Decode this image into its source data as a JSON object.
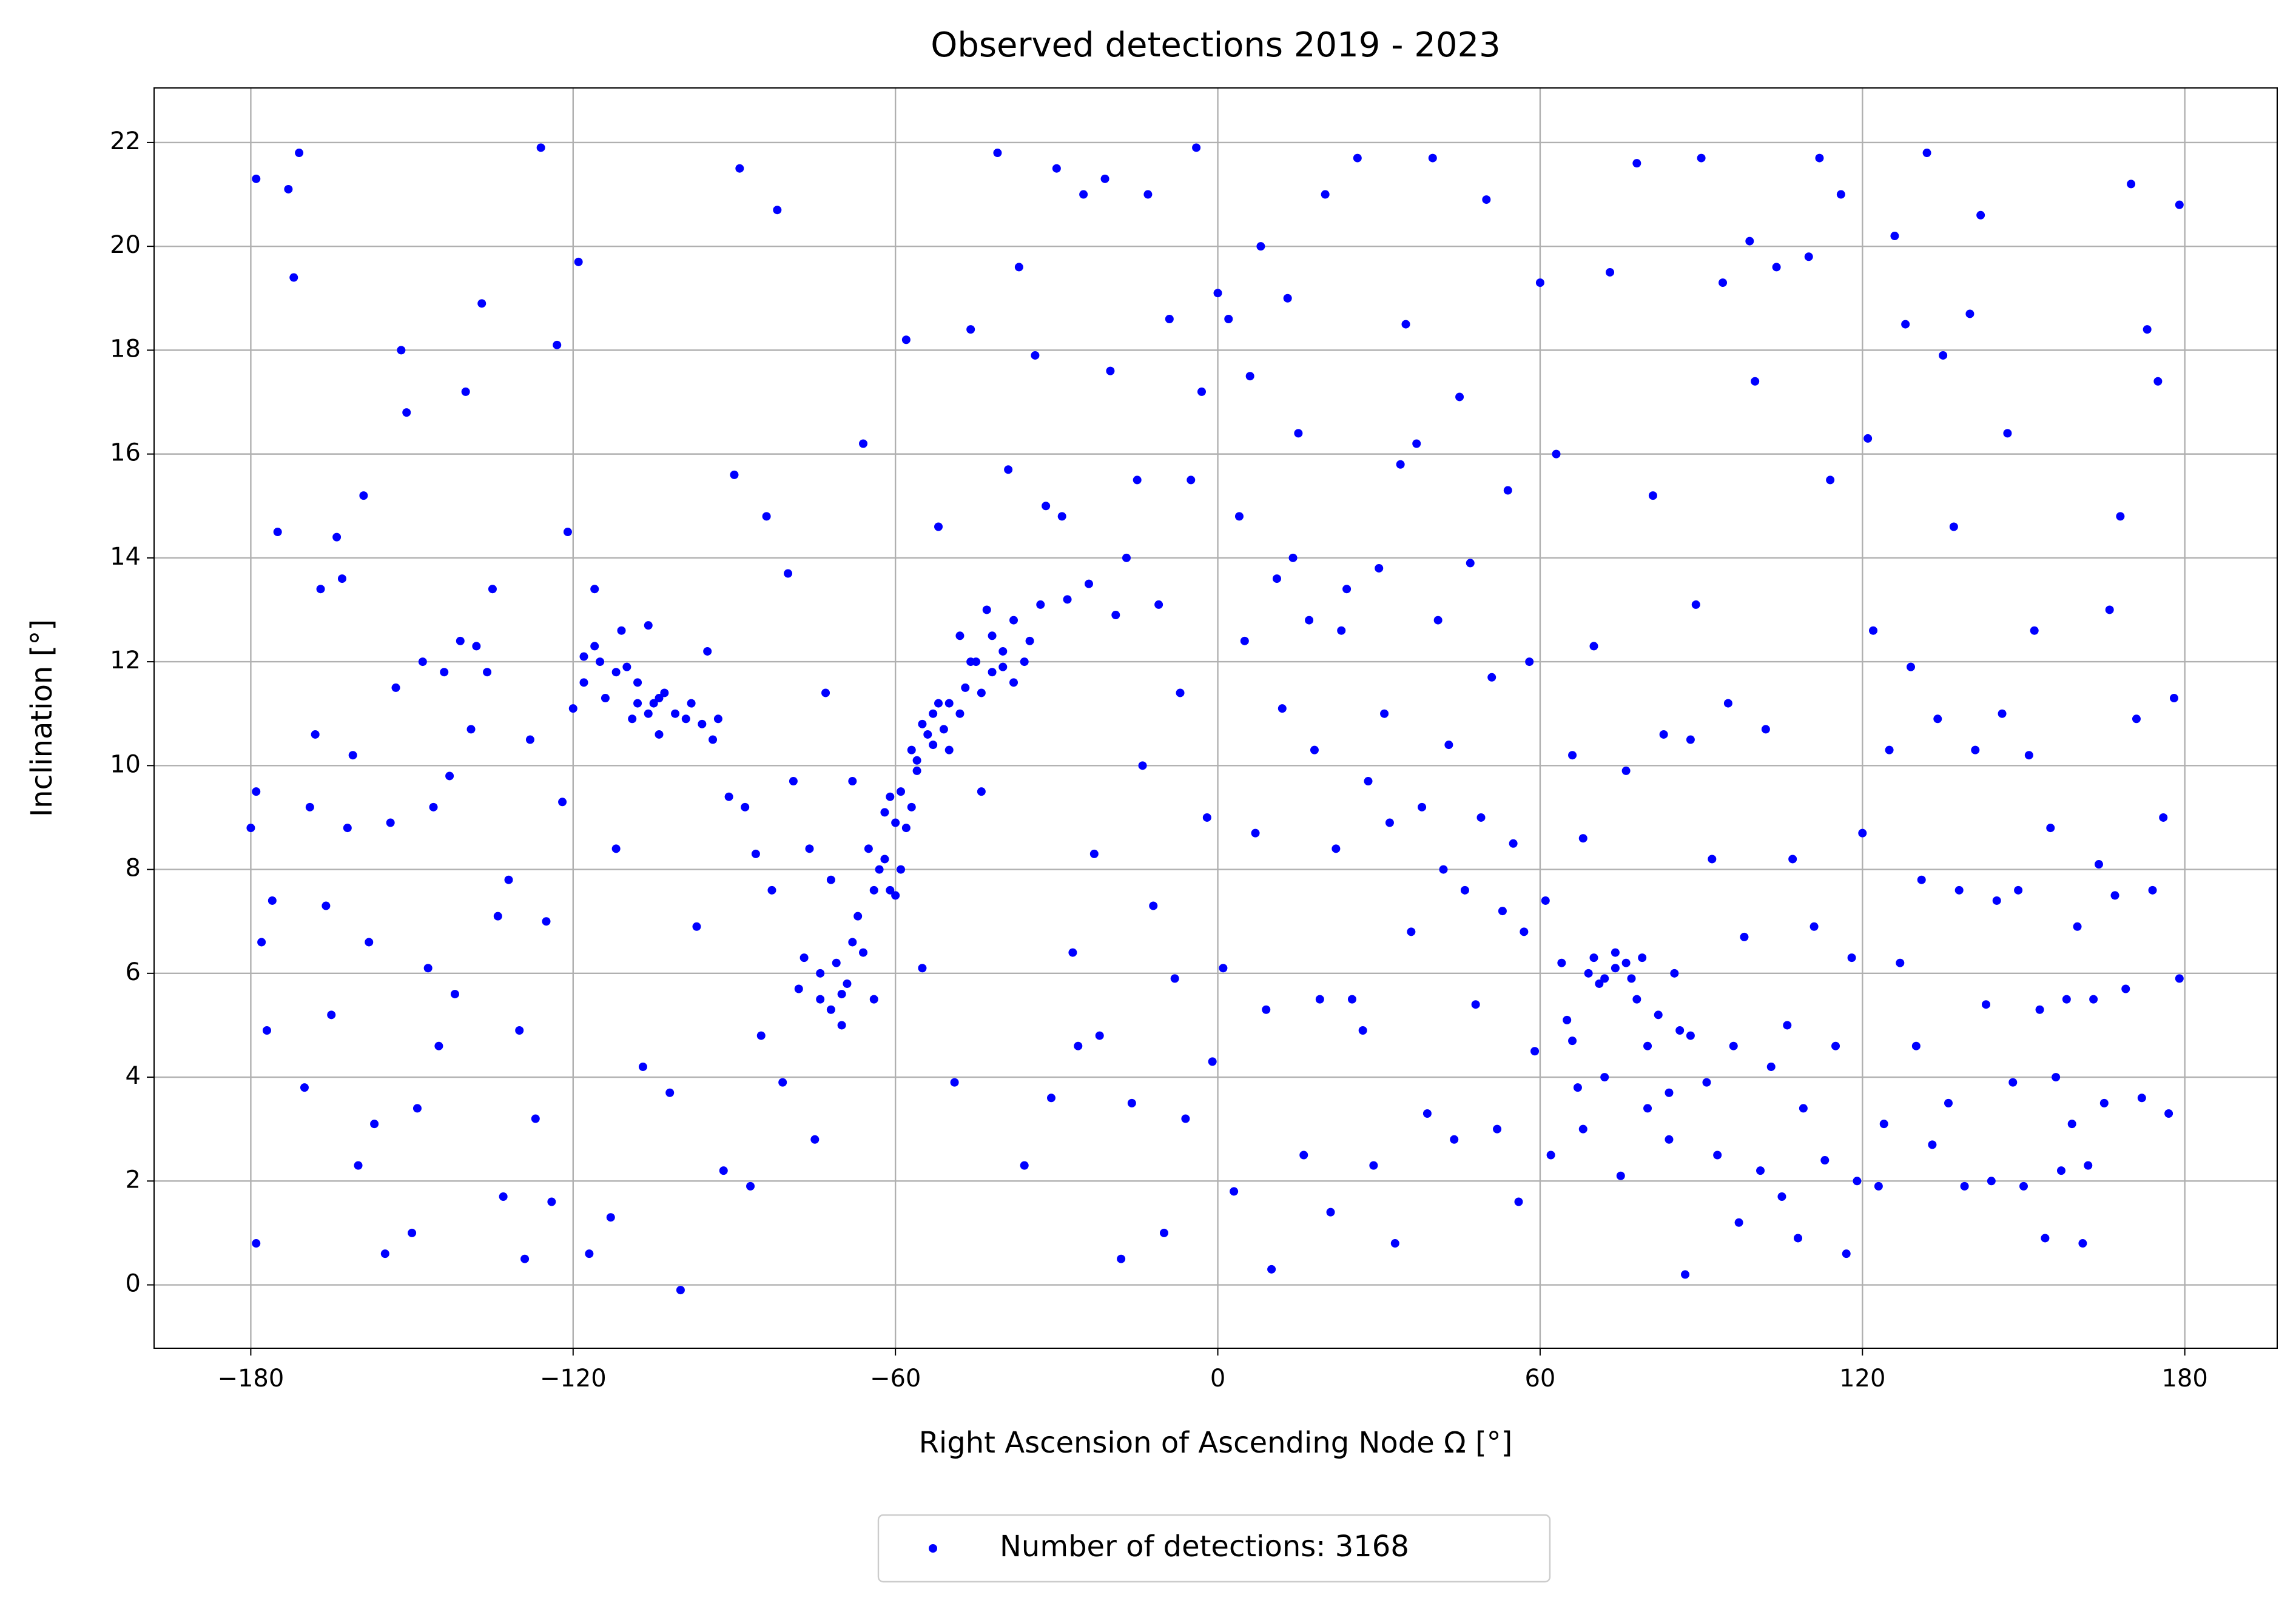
{
  "chart_data": {
    "type": "scatter",
    "title": "Observed detections 2019 - 2023",
    "x_label": "Right Ascension of Ascending Node Ω [°]",
    "y_label": "Inclination [°]",
    "xlim": [
      -198,
      197.2
    ],
    "ylim": [
      -1.22,
      23.05
    ],
    "xticks": [
      {
        "value": -180,
        "label": "−180"
      },
      {
        "value": -120,
        "label": "−120"
      },
      {
        "value": -60,
        "label": "−60"
      },
      0,
      60,
      120,
      180
    ],
    "yticks": [
      0,
      2,
      4,
      6,
      8,
      10,
      12,
      14,
      16,
      18,
      20,
      22
    ],
    "grid": true,
    "legend": "lower center",
    "series": [
      {
        "name": "Number of detections: 3168",
        "color": "#0000ff",
        "x": [
          -180,
          -179,
          -179,
          -179,
          -178,
          -177,
          -176,
          -175,
          -173,
          -172,
          -171,
          -170,
          -169,
          -168,
          -167,
          -166,
          -165,
          -164,
          -163,
          -162,
          -161,
          -160,
          -159,
          -158,
          -157,
          -155,
          -154,
          -153,
          -152,
          -151,
          -150,
          -149,
          -148,
          -147,
          -146,
          -145,
          -144,
          -143,
          -142,
          -141,
          -140,
          -139,
          -138,
          -137,
          -136,
          -135,
          -134,
          -133,
          -132,
          -130,
          -129,
          -128,
          -127,
          -126,
          -125,
          -124,
          -123,
          -122,
          -121,
          -120,
          -119,
          -118,
          -117,
          -116,
          -115,
          -114,
          -113,
          -112,
          -111,
          -110,
          -109,
          -108,
          -107,
          -106,
          -105,
          -104,
          -103,
          -102,
          -101,
          -100,
          -99,
          -98,
          -97,
          -96,
          -95,
          -94,
          -93,
          -92,
          -91,
          -90,
          -89,
          -88,
          -87,
          -86,
          -85,
          -84,
          -83,
          -82,
          -81,
          -80,
          -79,
          -78,
          -77,
          -76,
          -75,
          -74,
          -73,
          -72,
          -71,
          -70,
          -69,
          -68,
          -67,
          -66,
          -65,
          -64,
          -63,
          -62,
          -61,
          -60,
          -59,
          -58,
          -57,
          -56,
          -55,
          -54,
          -53,
          -52,
          -51,
          -50,
          -49,
          -48,
          -47,
          -46,
          -45,
          -44,
          -43,
          -42,
          -41,
          -40,
          -39,
          -38,
          -37,
          -36,
          -35,
          -34,
          -33,
          -32,
          -31,
          -30,
          -29,
          -28,
          -27,
          -26,
          -25,
          -24,
          -23,
          -22,
          -21,
          -20,
          -19,
          -18,
          -17,
          -16,
          -15,
          -14,
          -13,
          -12,
          -11,
          -10,
          -9,
          -8,
          -7,
          -6,
          -5,
          -4,
          -3,
          -2,
          -1,
          0,
          1,
          2,
          3,
          4,
          5,
          6,
          7,
          8,
          9,
          10,
          11,
          12,
          13,
          14,
          15,
          16,
          17,
          18,
          19,
          20,
          21,
          22,
          23,
          24,
          25,
          26,
          27,
          28,
          29,
          30,
          31,
          32,
          33,
          34,
          35,
          36,
          37,
          38,
          39,
          40,
          41,
          42,
          43,
          44,
          45,
          46,
          47,
          48,
          49,
          50,
          51,
          52,
          53,
          54,
          55,
          56,
          57,
          58,
          59,
          60,
          61,
          62,
          63,
          64,
          65,
          66,
          67,
          68,
          69,
          70,
          71,
          72,
          73,
          74,
          75,
          76,
          77,
          78,
          79,
          80,
          81,
          82,
          83,
          84,
          85,
          86,
          87,
          88,
          89,
          90,
          91,
          92,
          93,
          94,
          95,
          96,
          97,
          98,
          99,
          100,
          101,
          102,
          103,
          104,
          105,
          106,
          107,
          108,
          109,
          110,
          111,
          112,
          113,
          114,
          115,
          116,
          117,
          118,
          119,
          120,
          121,
          122,
          123,
          124,
          125,
          126,
          127,
          128,
          129,
          130,
          131,
          132,
          133,
          134,
          135,
          136,
          137,
          138,
          139,
          140,
          141,
          142,
          143,
          144,
          145,
          146,
          147,
          148,
          149,
          150,
          151,
          152,
          153,
          154,
          155,
          156,
          157,
          158,
          159,
          160,
          161,
          162,
          163,
          164,
          165,
          166,
          167,
          168,
          169,
          170,
          171,
          172,
          173,
          174,
          175,
          176,
          177,
          178,
          179,
          179,
          -62,
          -60,
          -58,
          -57,
          -59,
          -61,
          -56,
          -55,
          -53,
          -52,
          -50,
          -48,
          -46,
          -44,
          -42,
          -40,
          -38,
          -36,
          -64,
          -66,
          -70,
          -72,
          -74,
          -68,
          -112,
          -108,
          -106,
          -104,
          -116,
          -118,
          70,
          72,
          74,
          76,
          78,
          66,
          68,
          80,
          84,
          88
        ],
        "y": [
          8.8,
          9.5,
          21.3,
          0.8,
          6.6,
          4.9,
          7.4,
          14.5,
          21.1,
          19.4,
          21.8,
          3.8,
          9.2,
          10.6,
          13.4,
          7.3,
          5.2,
          14.4,
          13.6,
          8.8,
          10.2,
          2.3,
          15.2,
          6.6,
          3.1,
          0.6,
          8.9,
          11.5,
          18.0,
          16.8,
          1.0,
          3.4,
          12.0,
          6.1,
          9.2,
          4.6,
          11.8,
          9.8,
          5.6,
          12.4,
          17.2,
          10.7,
          12.3,
          18.9,
          11.8,
          13.4,
          7.1,
          1.7,
          7.8,
          4.9,
          0.5,
          10.5,
          3.2,
          21.9,
          7.0,
          1.6,
          18.1,
          9.3,
          14.5,
          11.1,
          19.7,
          12.1,
          0.6,
          13.4,
          12.0,
          11.3,
          1.3,
          8.4,
          12.6,
          11.9,
          10.9,
          11.6,
          4.2,
          12.7,
          11.2,
          10.6,
          11.4,
          3.7,
          11.0,
          -0.1,
          10.9,
          11.2,
          6.9,
          10.8,
          12.2,
          10.5,
          10.9,
          2.2,
          9.4,
          15.6,
          21.5,
          9.2,
          1.9,
          8.3,
          4.8,
          14.8,
          7.6,
          20.7,
          3.9,
          13.7,
          9.7,
          5.7,
          6.3,
          8.4,
          2.8,
          5.5,
          11.4,
          7.8,
          6.2,
          5.0,
          5.8,
          9.7,
          7.1,
          16.2,
          8.4,
          5.5,
          8.0,
          9.1,
          7.6,
          8.9,
          9.5,
          18.2,
          10.3,
          9.9,
          6.1,
          10.6,
          11.0,
          14.6,
          10.7,
          11.2,
          3.9,
          12.5,
          11.5,
          18.4,
          12.0,
          9.5,
          13.0,
          11.8,
          21.8,
          12.2,
          15.7,
          11.6,
          19.6,
          2.3,
          12.4,
          17.9,
          13.1,
          15.0,
          3.6,
          21.5,
          14.8,
          13.2,
          6.4,
          4.6,
          21.0,
          13.5,
          8.3,
          4.8,
          21.3,
          17.6,
          12.9,
          0.5,
          14.0,
          3.5,
          15.5,
          10.0,
          21.0,
          7.3,
          13.1,
          1.0,
          18.6,
          5.9,
          11.4,
          3.2,
          15.5,
          21.9,
          17.2,
          9.0,
          4.3,
          19.1,
          6.1,
          18.6,
          1.8,
          14.8,
          12.4,
          17.5,
          8.7,
          20.0,
          5.3,
          0.3,
          13.6,
          11.1,
          19.0,
          14.0,
          16.4,
          2.5,
          12.8,
          10.3,
          5.5,
          21.0,
          1.4,
          8.4,
          12.6,
          13.4,
          5.5,
          21.7,
          4.9,
          9.7,
          2.3,
          13.8,
          11.0,
          8.9,
          0.8,
          15.8,
          18.5,
          6.8,
          16.2,
          9.2,
          3.3,
          21.7,
          12.8,
          8.0,
          10.4,
          2.8,
          17.1,
          7.6,
          13.9,
          5.4,
          9.0,
          20.9,
          11.7,
          3.0,
          7.2,
          15.3,
          8.5,
          1.6,
          6.8,
          12.0,
          4.5,
          19.3,
          7.4,
          2.5,
          16.0,
          6.2,
          5.1,
          10.2,
          3.8,
          8.6,
          6.0,
          12.3,
          5.8,
          4.0,
          19.5,
          6.4,
          2.1,
          9.9,
          5.9,
          21.6,
          6.3,
          3.4,
          15.2,
          5.2,
          10.6,
          2.8,
          6.0,
          4.9,
          0.2,
          10.5,
          13.1,
          21.7,
          3.9,
          8.2,
          2.5,
          19.3,
          11.2,
          4.6,
          1.2,
          6.7,
          20.1,
          17.4,
          2.2,
          10.7,
          4.2,
          19.6,
          1.7,
          5.0,
          8.2,
          0.9,
          3.4,
          19.8,
          6.9,
          21.7,
          2.4,
          15.5,
          4.6,
          21.0,
          0.6,
          6.3,
          2.0,
          8.7,
          16.3,
          12.6,
          1.9,
          3.1,
          10.3,
          20.2,
          6.2,
          18.5,
          11.9,
          4.6,
          7.8,
          21.8,
          2.7,
          10.9,
          17.9,
          3.5,
          14.6,
          7.6,
          1.9,
          18.7,
          10.3,
          20.6,
          5.4,
          2.0,
          7.4,
          11.0,
          16.4,
          3.9,
          7.6,
          1.9,
          10.2,
          12.6,
          5.3,
          0.9,
          8.8,
          4.0,
          2.2,
          5.5,
          3.1,
          6.9,
          0.8,
          2.3,
          5.5,
          8.1,
          3.5,
          13.0,
          7.5,
          14.8,
          5.7,
          21.2,
          10.9,
          3.6,
          18.4,
          7.6,
          17.4,
          9.0,
          3.3,
          11.3,
          20.8,
          5.9,
          8.2,
          7.5,
          8.8,
          9.2,
          8.0,
          9.4,
          10.1,
          10.8,
          10.4,
          11.2,
          10.3,
          11.0,
          12.0,
          11.4,
          12.5,
          11.9,
          12.8,
          12.0,
          7.6,
          6.4,
          5.6,
          5.3,
          6.0,
          6.6,
          11.8,
          11.2,
          11.0,
          11.3,
          12.3,
          11.6,
          6.3,
          5.9,
          6.1,
          6.2,
          5.5,
          4.7,
          3.0,
          4.6,
          3.7,
          4.8
        ]
      }
    ]
  }
}
